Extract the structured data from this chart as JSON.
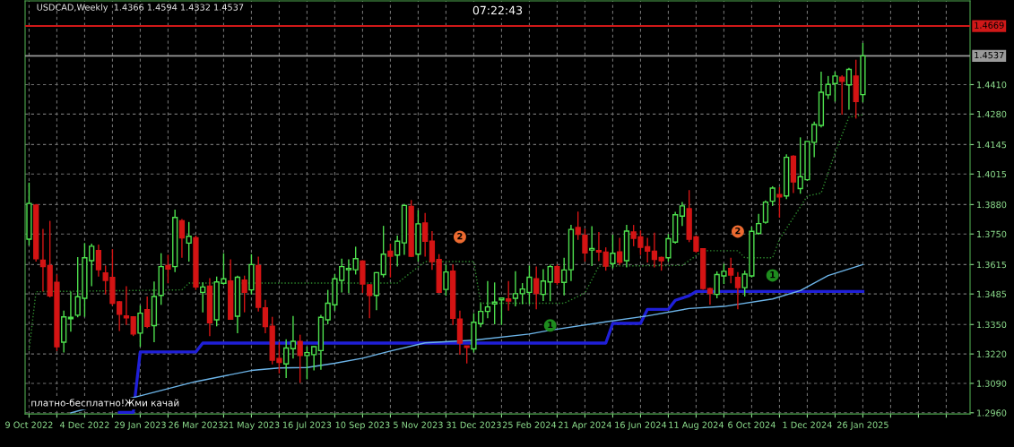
{
  "chart_data": {
    "type": "candlestick",
    "title": "USDCAD,Weekly  1.4366 1.4594 1.4332 1.4537",
    "annotations": [
      "07:22:43",
      "платно-бесплатно!Жми качай",
      {
        "text": "1",
        "x": "2024-03-17",
        "y": 1.3346
      },
      {
        "text": "1",
        "x": "2024-10-27",
        "y": 1.3567
      },
      {
        "text": "2",
        "x": "2023-12-17",
        "y": 1.3737
      },
      {
        "text": "2",
        "x": "2024-09-22",
        "y": 1.3761
      }
    ],
    "x": [
      "2022-10-09",
      "2022-10-16",
      "2022-10-23",
      "2022-10-30",
      "2022-11-06",
      "2022-11-13",
      "2022-11-20",
      "2022-11-27",
      "2022-12-04",
      "2022-12-11",
      "2022-12-18",
      "2022-12-25",
      "2023-01-01",
      "2023-01-08",
      "2023-01-15",
      "2023-01-22",
      "2023-01-29",
      "2023-02-05",
      "2023-02-12",
      "2023-02-19",
      "2023-02-26",
      "2023-03-05",
      "2023-03-12",
      "2023-03-19",
      "2023-03-26",
      "2023-04-02",
      "2023-04-09",
      "2023-04-16",
      "2023-04-23",
      "2023-04-30",
      "2023-05-07",
      "2023-05-14",
      "2023-05-21",
      "2023-05-28",
      "2023-06-04",
      "2023-06-11",
      "2023-06-18",
      "2023-06-25",
      "2023-07-02",
      "2023-07-09",
      "2023-07-16",
      "2023-07-23",
      "2023-07-30",
      "2023-08-06",
      "2023-08-13",
      "2023-08-20",
      "2023-08-27",
      "2023-09-03",
      "2023-09-10",
      "2023-09-17",
      "2023-09-24",
      "2023-10-01",
      "2023-10-08",
      "2023-10-15",
      "2023-10-22",
      "2023-10-29",
      "2023-11-05",
      "2023-11-12",
      "2023-11-19",
      "2023-11-26",
      "2023-12-03",
      "2023-12-10",
      "2023-12-17",
      "2023-12-24",
      "2023-12-31",
      "2024-01-07",
      "2024-01-14",
      "2024-01-21",
      "2024-01-28",
      "2024-02-04",
      "2024-02-11",
      "2024-02-18",
      "2024-02-25",
      "2024-03-03",
      "2024-03-10",
      "2024-03-17",
      "2024-03-24",
      "2024-03-31",
      "2024-04-07",
      "2024-04-14",
      "2024-04-21",
      "2024-04-28",
      "2024-05-05",
      "2024-05-12",
      "2024-05-19",
      "2024-05-26",
      "2024-06-02",
      "2024-06-09",
      "2024-06-16",
      "2024-06-23",
      "2024-06-30",
      "2024-07-07",
      "2024-07-14",
      "2024-07-21",
      "2024-07-28",
      "2024-08-04",
      "2024-08-11",
      "2024-08-18",
      "2024-08-25",
      "2024-09-01",
      "2024-09-08",
      "2024-09-15",
      "2024-09-22",
      "2024-09-29",
      "2024-10-06",
      "2024-10-13",
      "2024-10-20",
      "2024-10-27",
      "2024-11-03",
      "2024-11-10",
      "2024-11-17",
      "2024-11-24",
      "2024-12-01",
      "2024-12-08",
      "2024-12-15",
      "2024-12-22",
      "2024-12-29",
      "2025-01-05",
      "2025-01-12",
      "2025-01-19",
      "2025-01-26"
    ],
    "ohlc": [
      [
        1.3727,
        1.3977,
        1.37,
        1.3885
      ],
      [
        1.3878,
        1.3882,
        1.3628,
        1.3641
      ],
      [
        1.3634,
        1.3773,
        1.3496,
        1.3606
      ],
      [
        1.3611,
        1.3808,
        1.347,
        1.3477
      ],
      [
        1.3536,
        1.3571,
        1.3233,
        1.3252
      ],
      [
        1.3272,
        1.3411,
        1.3226,
        1.3384
      ],
      [
        1.3376,
        1.3496,
        1.3318,
        1.3382
      ],
      [
        1.3391,
        1.3648,
        1.3382,
        1.3473
      ],
      [
        1.3466,
        1.371,
        1.3384,
        1.3645
      ],
      [
        1.3632,
        1.3707,
        1.3519,
        1.3696
      ],
      [
        1.3677,
        1.3703,
        1.3562,
        1.3592
      ],
      [
        1.3578,
        1.3611,
        1.3483,
        1.3545
      ],
      [
        1.3558,
        1.3683,
        1.3434,
        1.3444
      ],
      [
        1.345,
        1.3454,
        1.3321,
        1.3395
      ],
      [
        1.3388,
        1.3519,
        1.3348,
        1.338
      ],
      [
        1.3384,
        1.3387,
        1.3299,
        1.3308
      ],
      [
        1.3312,
        1.3434,
        1.3252,
        1.34
      ],
      [
        1.3416,
        1.3474,
        1.3334,
        1.3342
      ],
      [
        1.3345,
        1.354,
        1.3272,
        1.3474
      ],
      [
        1.3479,
        1.3665,
        1.3437,
        1.3606
      ],
      [
        1.3611,
        1.3658,
        1.3532,
        1.3595
      ],
      [
        1.3606,
        1.3858,
        1.3582,
        1.3823
      ],
      [
        1.3808,
        1.3816,
        1.3645,
        1.3733
      ],
      [
        1.371,
        1.3803,
        1.3628,
        1.374
      ],
      [
        1.3733,
        1.3743,
        1.3503,
        1.3516
      ],
      [
        1.3492,
        1.3536,
        1.3404,
        1.3516
      ],
      [
        1.352,
        1.3555,
        1.3299,
        1.3358
      ],
      [
        1.3371,
        1.3562,
        1.3342,
        1.3538
      ],
      [
        1.3532,
        1.3665,
        1.3526,
        1.3552
      ],
      [
        1.3542,
        1.3638,
        1.3371,
        1.3374
      ],
      [
        1.3387,
        1.3566,
        1.3312,
        1.3559
      ],
      [
        1.3546,
        1.3566,
        1.3404,
        1.3492
      ],
      [
        1.3503,
        1.3661,
        1.3483,
        1.3615
      ],
      [
        1.3611,
        1.365,
        1.3408,
        1.3426
      ],
      [
        1.3424,
        1.3459,
        1.3312,
        1.3341
      ],
      [
        1.3342,
        1.3384,
        1.3174,
        1.3193
      ],
      [
        1.32,
        1.3272,
        1.3134,
        1.3183
      ],
      [
        1.3176,
        1.3285,
        1.3114,
        1.3246
      ],
      [
        1.3243,
        1.3388,
        1.32,
        1.3276
      ],
      [
        1.3275,
        1.3305,
        1.3092,
        1.3213
      ],
      [
        1.3213,
        1.3252,
        1.3108,
        1.3226
      ],
      [
        1.3217,
        1.3255,
        1.3147,
        1.3252
      ],
      [
        1.3235,
        1.3393,
        1.315,
        1.3382
      ],
      [
        1.3371,
        1.3503,
        1.3351,
        1.3444
      ],
      [
        1.3437,
        1.3573,
        1.3411,
        1.3552
      ],
      [
        1.3545,
        1.3641,
        1.3492,
        1.3606
      ],
      [
        1.3592,
        1.3638,
        1.3489,
        1.3598
      ],
      [
        1.3592,
        1.3694,
        1.3571,
        1.3641
      ],
      [
        1.363,
        1.3634,
        1.3489,
        1.3529
      ],
      [
        1.3525,
        1.3529,
        1.3378,
        1.3479
      ],
      [
        1.3479,
        1.3582,
        1.3413,
        1.3579
      ],
      [
        1.3571,
        1.3786,
        1.3558,
        1.3661
      ],
      [
        1.3674,
        1.3707,
        1.3558,
        1.3652
      ],
      [
        1.3657,
        1.3743,
        1.3606,
        1.3718
      ],
      [
        1.3711,
        1.3882,
        1.3658,
        1.3876
      ],
      [
        1.3872,
        1.39,
        1.3648,
        1.3652
      ],
      [
        1.3661,
        1.3855,
        1.3628,
        1.3795
      ],
      [
        1.3799,
        1.3843,
        1.365,
        1.3718
      ],
      [
        1.3718,
        1.3763,
        1.3592,
        1.3628
      ],
      [
        1.3637,
        1.3661,
        1.3489,
        1.3492
      ],
      [
        1.3505,
        1.3615,
        1.3477,
        1.3582
      ],
      [
        1.3586,
        1.3615,
        1.3348,
        1.3378
      ],
      [
        1.3374,
        1.3411,
        1.3217,
        1.3268
      ],
      [
        1.3255,
        1.3256,
        1.3178,
        1.3249
      ],
      [
        1.3242,
        1.34,
        1.3226,
        1.336
      ],
      [
        1.3354,
        1.3444,
        1.3338,
        1.3408
      ],
      [
        1.3408,
        1.3542,
        1.3378,
        1.3428
      ],
      [
        1.3441,
        1.3536,
        1.3351,
        1.3449
      ],
      [
        1.3459,
        1.347,
        1.3348,
        1.3467
      ],
      [
        1.3463,
        1.3542,
        1.3411,
        1.3454
      ],
      [
        1.3466,
        1.3586,
        1.343,
        1.3486
      ],
      [
        1.3486,
        1.3533,
        1.344,
        1.3507
      ],
      [
        1.3492,
        1.3611,
        1.344,
        1.3559
      ],
      [
        1.3552,
        1.3606,
        1.3417,
        1.3487
      ],
      [
        1.3483,
        1.3595,
        1.3454,
        1.3542
      ],
      [
        1.3538,
        1.3615,
        1.3453,
        1.3606
      ],
      [
        1.3606,
        1.3615,
        1.3526,
        1.3536
      ],
      [
        1.3536,
        1.3645,
        1.3479,
        1.3591
      ],
      [
        1.3592,
        1.379,
        1.3542,
        1.377
      ],
      [
        1.3779,
        1.3849,
        1.3724,
        1.3749
      ],
      [
        1.3744,
        1.3773,
        1.3628,
        1.3667
      ],
      [
        1.3679,
        1.3785,
        1.3608,
        1.3686
      ],
      [
        1.3677,
        1.3759,
        1.363,
        1.3671
      ],
      [
        1.367,
        1.3691,
        1.3588,
        1.3608
      ],
      [
        1.3619,
        1.3747,
        1.3598,
        1.3665
      ],
      [
        1.3671,
        1.3733,
        1.3612,
        1.3625
      ],
      [
        1.3632,
        1.379,
        1.3602,
        1.3763
      ],
      [
        1.3759,
        1.379,
        1.3696,
        1.3731
      ],
      [
        1.3737,
        1.3766,
        1.3657,
        1.3691
      ],
      [
        1.3694,
        1.3733,
        1.3624,
        1.3674
      ],
      [
        1.3674,
        1.3756,
        1.3602,
        1.3638
      ],
      [
        1.3646,
        1.365,
        1.3588,
        1.3632
      ],
      [
        1.3645,
        1.375,
        1.3628,
        1.3729
      ],
      [
        1.3714,
        1.3848,
        1.3707,
        1.3835
      ],
      [
        1.3829,
        1.3891,
        1.3786,
        1.3874
      ],
      [
        1.3862,
        1.3944,
        1.3714,
        1.3727
      ],
      [
        1.3737,
        1.3744,
        1.3667,
        1.3674
      ],
      [
        1.3685,
        1.3687,
        1.3503,
        1.3509
      ],
      [
        1.3509,
        1.3513,
        1.3437,
        1.3487
      ],
      [
        1.3483,
        1.3585,
        1.3466,
        1.3571
      ],
      [
        1.3565,
        1.3619,
        1.3529,
        1.3585
      ],
      [
        1.3598,
        1.3645,
        1.3532,
        1.3569
      ],
      [
        1.3558,
        1.3582,
        1.3417,
        1.3513
      ],
      [
        1.3513,
        1.3588,
        1.3474,
        1.3573
      ],
      [
        1.3565,
        1.3782,
        1.3558,
        1.3762
      ],
      [
        1.3753,
        1.3839,
        1.3747,
        1.3796
      ],
      [
        1.3802,
        1.3898,
        1.3795,
        1.3891
      ],
      [
        1.3895,
        1.3961,
        1.3874,
        1.3953
      ],
      [
        1.3924,
        1.3957,
        1.3822,
        1.3914
      ],
      [
        1.3918,
        1.4102,
        1.3904,
        1.4089
      ],
      [
        1.4093,
        1.4098,
        1.3931,
        1.398
      ],
      [
        1.3951,
        1.4177,
        1.3928,
        1.4003
      ],
      [
        1.399,
        1.4161,
        1.3985,
        1.4159
      ],
      [
        1.4155,
        1.4247,
        1.4089,
        1.4234
      ],
      [
        1.423,
        1.4467,
        1.4221,
        1.4376
      ],
      [
        1.4365,
        1.4448,
        1.4346,
        1.4411
      ],
      [
        1.4415,
        1.4467,
        1.4335,
        1.4448
      ],
      [
        1.4443,
        1.4451,
        1.4277,
        1.4425
      ],
      [
        1.4409,
        1.4484,
        1.4299,
        1.4477
      ],
      [
        1.4448,
        1.452,
        1.426,
        1.4335
      ],
      [
        1.4366,
        1.4594,
        1.4332,
        1.4537
      ]
    ],
    "colors": [
      "#4ee04e",
      "#d41414",
      "#d41414",
      "#d41414",
      "#d41414",
      "#4ee04e",
      "#4ee04e",
      "#4ee04e",
      "#4ee04e",
      "#4ee04e",
      "#d41414",
      "#d41414",
      "#d41414",
      "#d41414",
      "#d41414",
      "#d41414",
      "#4ee04e",
      "#d41414",
      "#4ee04e",
      "#4ee04e",
      "#d41414",
      "#4ee04e",
      "#d41414",
      "#4ee04e",
      "#d41414",
      "#4ee04e",
      "#d41414",
      "#4ee04e",
      "#4ee04e",
      "#d41414",
      "#4ee04e",
      "#d41414",
      "#4ee04e",
      "#d41414",
      "#d41414",
      "#d41414",
      "#d41414",
      "#4ee04e",
      "#4ee04e",
      "#d41414",
      "#4ee04e",
      "#4ee04e",
      "#4ee04e",
      "#4ee04e",
      "#4ee04e",
      "#4ee04e",
      "#4ee04e",
      "#4ee04e",
      "#d41414",
      "#d41414",
      "#4ee04e",
      "#4ee04e",
      "#d41414",
      "#4ee04e",
      "#4ee04e",
      "#d41414",
      "#4ee04e",
      "#d41414",
      "#d41414",
      "#d41414",
      "#4ee04e",
      "#d41414",
      "#d41414",
      "#d41414",
      "#4ee04e",
      "#4ee04e",
      "#4ee04e",
      "#4ee04e",
      "#4ee04e",
      "#d41414",
      "#4ee04e",
      "#4ee04e",
      "#4ee04e",
      "#d41414",
      "#4ee04e",
      "#4ee04e",
      "#d41414",
      "#4ee04e",
      "#4ee04e",
      "#d41414",
      "#d41414",
      "#4ee04e",
      "#d41414",
      "#d41414",
      "#4ee04e",
      "#d41414",
      "#4ee04e",
      "#d41414",
      "#d41414",
      "#d41414",
      "#d41414",
      "#d41414",
      "#4ee04e",
      "#4ee04e",
      "#4ee04e",
      "#d41414",
      "#d41414",
      "#d41414",
      "#d41414",
      "#4ee04e",
      "#4ee04e",
      "#d41414",
      "#d41414",
      "#4ee04e",
      "#4ee04e",
      "#4ee04e",
      "#4ee04e",
      "#4ee04e",
      "#d41414",
      "#4ee04e",
      "#d41414",
      "#4ee04e",
      "#4ee04e",
      "#4ee04e",
      "#4ee04e",
      "#4ee04e",
      "#4ee04e",
      "#d41414",
      "#4ee04e",
      "#d41414",
      "#4ee04e"
    ],
    "series": [
      {
        "type": "line",
        "color": "#1f1fd8",
        "line_style": "solid",
        "x": [
          "2023-01-08",
          "2023-01-22",
          "2023-01-29",
          "2023-03-26",
          "2023-04-02",
          "2024-05-12",
          "2024-05-19",
          "2024-06-16",
          "2024-06-23",
          "2024-07-14",
          "2024-07-21",
          "2024-08-04",
          "2024-08-11",
          "2025-01-26"
        ],
        "values": [
          1.2962,
          1.2962,
          1.3229,
          1.3229,
          1.3268,
          1.3268,
          1.3355,
          1.3355,
          1.3417,
          1.3417,
          1.3457,
          1.3477,
          1.3496,
          1.3496
        ]
      },
      {
        "type": "line",
        "color": "#6cb4e8",
        "line_style": "solid",
        "x": [
          "2022-11-20",
          "2022-12-04",
          "2023-01-29",
          "2023-03-26",
          "2023-05-21",
          "2023-06-18",
          "2023-07-16",
          "2023-08-13",
          "2023-09-10",
          "2023-10-08",
          "2023-11-12",
          "2023-12-31",
          "2024-02-25",
          "2024-03-17",
          "2024-05-12",
          "2024-06-23",
          "2024-08-04",
          "2024-09-08",
          "2024-10-27",
          "2024-11-24",
          "2024-12-22",
          "2025-01-26"
        ],
        "values": [
          1.296,
          1.2976,
          1.3035,
          1.3098,
          1.3147,
          1.3158,
          1.316,
          1.3179,
          1.3201,
          1.3233,
          1.3269,
          1.3281,
          1.3308,
          1.3325,
          1.3362,
          1.3388,
          1.3421,
          1.343,
          1.3463,
          1.35,
          1.3566,
          1.3615
        ]
      },
      {
        "type": "line",
        "color": "#2e8a2e",
        "line_style": "dotted",
        "x": [
          "2022-10-09",
          "2022-10-16",
          "2023-03-12",
          "2023-03-19",
          "2023-10-15",
          "2023-11-12",
          "2023-12-31",
          "2024-01-07",
          "2024-03-31",
          "2024-04-21",
          "2024-05-05",
          "2024-07-28",
          "2024-08-18",
          "2024-09-22",
          "2024-09-29",
          "2024-10-27",
          "2024-11-03",
          "2024-11-17",
          "2024-12-01",
          "2024-12-15",
          "2024-12-29",
          "2025-01-12",
          "2025-01-26"
        ],
        "values": [
          1.3237,
          1.3495,
          1.3503,
          1.3533,
          1.3533,
          1.3628,
          1.3628,
          1.3444,
          1.3444,
          1.3489,
          1.3608,
          1.3611,
          1.3676,
          1.3676,
          1.3645,
          1.3645,
          1.3727,
          1.3822,
          1.3918,
          1.3931,
          1.4109,
          1.4267,
          1.4277
        ]
      },
      {
        "type": "scatter",
        "color": "#1e8c1e",
        "marker": "circle",
        "x": [
          "2024-03-17",
          "2024-10-27"
        ],
        "values": [
          1.3346,
          1.3567
        ]
      },
      {
        "type": "scatter",
        "color": "#ec6a30",
        "marker": "circle",
        "x": [
          "2023-12-17",
          "2024-09-22"
        ],
        "values": [
          1.3737,
          1.3761
        ]
      }
    ],
    "ref_lines": [
      {
        "axis": "y",
        "value": 1.4669,
        "label": "1.4669",
        "color": "#d01818",
        "line_style": "solid"
      },
      {
        "axis": "y",
        "value": 1.4537,
        "label": "1.4537",
        "color": "#9a9a9a",
        "line_style": "solid"
      }
    ],
    "xlim": [
      "2022-10-05",
      "2025-05-14"
    ],
    "xticks": [
      {
        "value": "2022-10-09",
        "label": "9 Oct 2022"
      },
      {
        "value": "2022-11-06",
        "label": null
      },
      {
        "value": "2022-12-04",
        "label": "4 Dec 2022"
      },
      {
        "value": "2023-01-01",
        "label": null
      },
      {
        "value": "2023-01-29",
        "label": "29 Jan 2023"
      },
      {
        "value": "2023-02-26",
        "label": null
      },
      {
        "value": "2023-03-26",
        "label": "26 Mar 2023"
      },
      {
        "value": "2023-04-23",
        "label": null
      },
      {
        "value": "2023-05-21",
        "label": "21 May 2023"
      },
      {
        "value": "2023-06-18",
        "label": null
      },
      {
        "value": "2023-07-16",
        "label": "16 Jul 2023"
      },
      {
        "value": "2023-08-13",
        "label": null
      },
      {
        "value": "2023-09-10",
        "label": "10 Sep 2023"
      },
      {
        "value": "2023-10-08",
        "label": null
      },
      {
        "value": "2023-11-05",
        "label": "5 Nov 2023"
      },
      {
        "value": "2023-12-03",
        "label": null
      },
      {
        "value": "2023-12-31",
        "label": "31 Dec 2023"
      },
      {
        "value": "2024-01-28",
        "label": null
      },
      {
        "value": "2024-02-25",
        "label": "25 Feb 2024"
      },
      {
        "value": "2024-03-24",
        "label": null
      },
      {
        "value": "2024-04-21",
        "label": "21 Apr 2024"
      },
      {
        "value": "2024-05-19",
        "label": null
      },
      {
        "value": "2024-06-16",
        "label": "16 Jun 2024"
      },
      {
        "value": "2024-07-14",
        "label": null
      },
      {
        "value": "2024-08-11",
        "label": "11 Aug 2024"
      },
      {
        "value": "2024-09-08",
        "label": null
      },
      {
        "value": "2024-10-06",
        "label": "6 Oct 2024"
      },
      {
        "value": "2024-11-03",
        "label": null
      },
      {
        "value": "2024-12-01",
        "label": "1 Dec 2024"
      },
      {
        "value": "2024-12-29",
        "label": null
      },
      {
        "value": "2025-01-26",
        "label": "26 Jan 2025"
      },
      {
        "value": "2025-02-23",
        "label": null
      },
      {
        "value": "2025-03-23",
        "label": null
      },
      {
        "value": "2025-04-20",
        "label": null
      }
    ],
    "ylim": [
      1.2955,
      1.478
    ],
    "yticks": [
      {
        "value": 1.296,
        "label": "1.2960"
      },
      {
        "value": 1.309,
        "label": "1.3090"
      },
      {
        "value": 1.322,
        "label": "1.3220"
      },
      {
        "value": 1.335,
        "label": "1.3350"
      },
      1.3485,
      1.3615,
      {
        "value": 1.375,
        "label": "1.3750"
      },
      {
        "value": 1.388,
        "label": "1.3880"
      },
      1.4015,
      1.4145,
      {
        "value": 1.428,
        "label": "1.4280"
      },
      {
        "value": 1.441,
        "label": "1.4410"
      }
    ],
    "grid": true
  }
}
